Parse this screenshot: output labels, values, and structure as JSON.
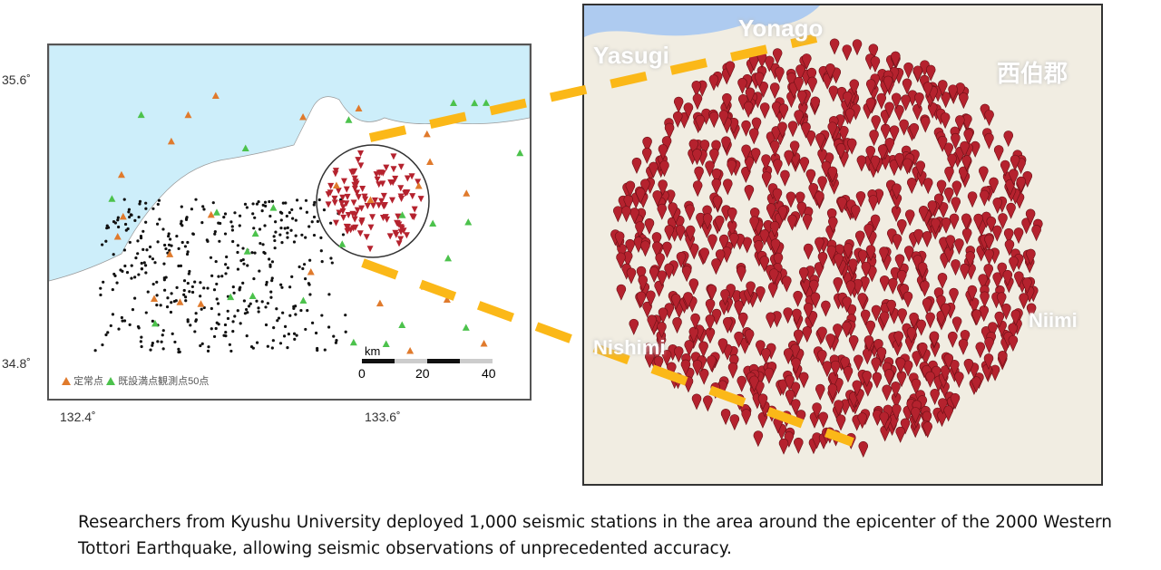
{
  "left_map": {
    "lat_ticks": [
      "35.6˚",
      "34.8˚"
    ],
    "lon_ticks": [
      "132.4˚",
      "133.6˚"
    ],
    "scale": {
      "unit": "km",
      "labels": [
        "0",
        "20",
        "40"
      ]
    },
    "legend": [
      {
        "label": "定常点",
        "color": "#e07a2c"
      },
      {
        "label": "既設満点観測点50点",
        "color": "#4cc24c"
      }
    ]
  },
  "right_map": {
    "labels": [
      "Yasugi",
      "Yonago",
      "西伯郡",
      "Nishimi",
      "Niimi"
    ],
    "pin_color": "#b5222e",
    "connector_color": "#fbb818"
  },
  "caption": "Researchers from Kyushu University deployed 1,000 seismic stations in the area around the epicenter of the 2000 Western Tottori Earthquake, allowing seismic observations of unprecedented accuracy."
}
